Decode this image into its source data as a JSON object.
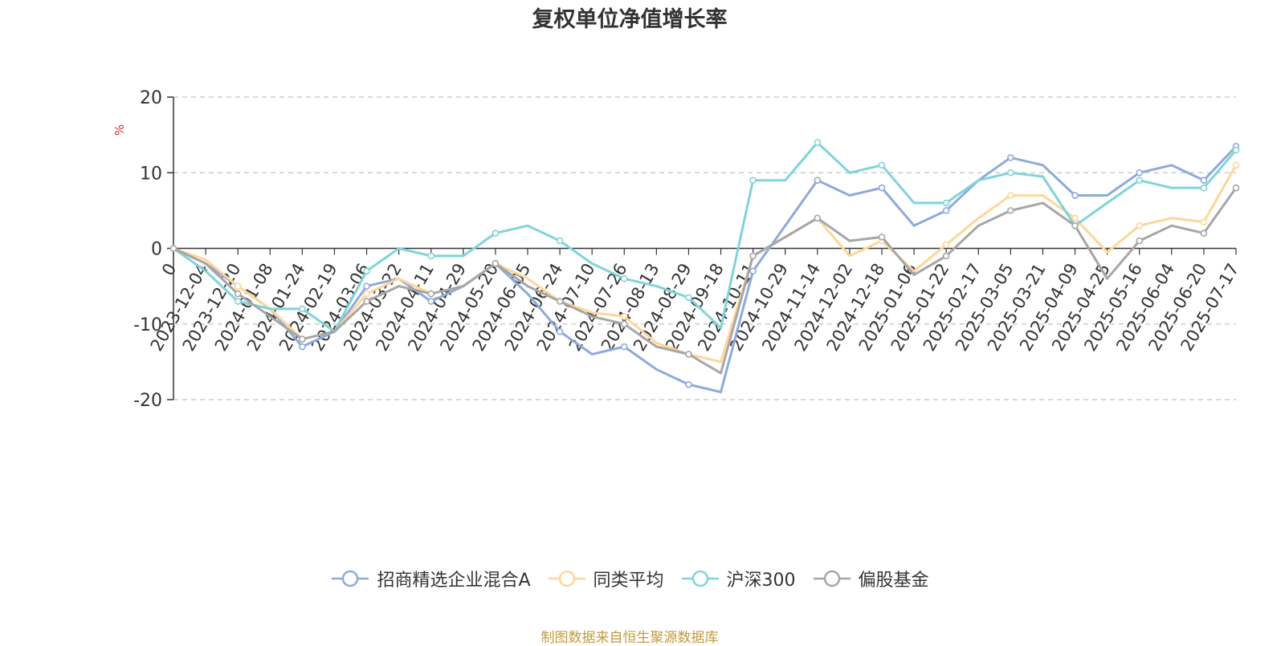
{
  "title": "复权单位净值增长率",
  "footer": "制图数据来自恒生聚源数据库",
  "chart_data": {
    "type": "line",
    "title": "复权单位净值增长率",
    "ylabel": "%",
    "ylim": [
      -20,
      20
    ],
    "yticks": [
      20,
      10,
      0,
      -10,
      -20
    ],
    "grid": true,
    "legend": "bottom",
    "categories": [
      "0",
      "2023-12-04",
      "2023-12-20",
      "2024-01-08",
      "2024-01-24",
      "2024-02-19",
      "2024-03-06",
      "2024-03-22",
      "2024-04-11",
      "2024-04-29",
      "2024-05-20",
      "2024-06-05",
      "2024-06-24",
      "2024-07-10",
      "2024-07-26",
      "2024-08-13",
      "2024-08-29",
      "2024-09-18",
      "2024-10-11",
      "2024-10-29",
      "2024-11-14",
      "2024-12-02",
      "2024-12-18",
      "2025-01-06",
      "2025-01-22",
      "2025-02-17",
      "2025-03-05",
      "2025-03-21",
      "2025-04-09",
      "2025-04-25",
      "2025-05-16",
      "2025-06-04",
      "2025-06-20",
      "2025-07-17"
    ],
    "series": [
      {
        "name": "招商精选企业混合A",
        "color": "#8eaadb",
        "values": [
          0,
          -2,
          -5,
          -8,
          -13,
          -11,
          -5,
          -4,
          -7,
          -5,
          -2,
          -6,
          -11,
          -14,
          -13,
          -16,
          -18,
          -19,
          -3,
          3,
          9,
          7,
          8,
          3,
          5,
          9,
          12,
          11,
          7,
          7,
          10,
          11,
          9,
          13.5
        ]
      },
      {
        "name": "同类平均",
        "color": "#ffd699",
        "values": [
          0,
          -1.5,
          -5,
          -8,
          -12,
          -11,
          -6,
          -4,
          -6,
          -5,
          -2,
          -4,
          -7,
          -8.5,
          -9,
          -12.5,
          -14,
          -15,
          -1,
          1.5,
          4,
          -1,
          1,
          -3,
          0.5,
          4,
          7,
          7,
          4,
          -0.5,
          3,
          4,
          3.5,
          11
        ]
      },
      {
        "name": "沪深300",
        "color": "#80d4d9",
        "values": [
          0,
          -3,
          -7,
          -8,
          -8,
          -11,
          -3,
          0,
          -1,
          -1,
          2,
          3,
          1,
          -2,
          -4,
          -5,
          -6.5,
          -10.5,
          9,
          9,
          14,
          10,
          11,
          6,
          6,
          9,
          10,
          9.5,
          3,
          6,
          9,
          8,
          8,
          13
        ]
      },
      {
        "name": "偏股基金",
        "color": "#a6a6a6",
        "values": [
          0,
          -2,
          -6,
          -9,
          -12,
          -11,
          -7,
          -5,
          -6,
          -5,
          -2,
          -5,
          -7,
          -9,
          -10,
          -13,
          -14,
          -16.5,
          -1,
          1.5,
          4,
          1,
          1.5,
          -3.5,
          -1,
          3,
          5,
          6,
          3,
          -4,
          1,
          3,
          2,
          8
        ]
      }
    ]
  }
}
